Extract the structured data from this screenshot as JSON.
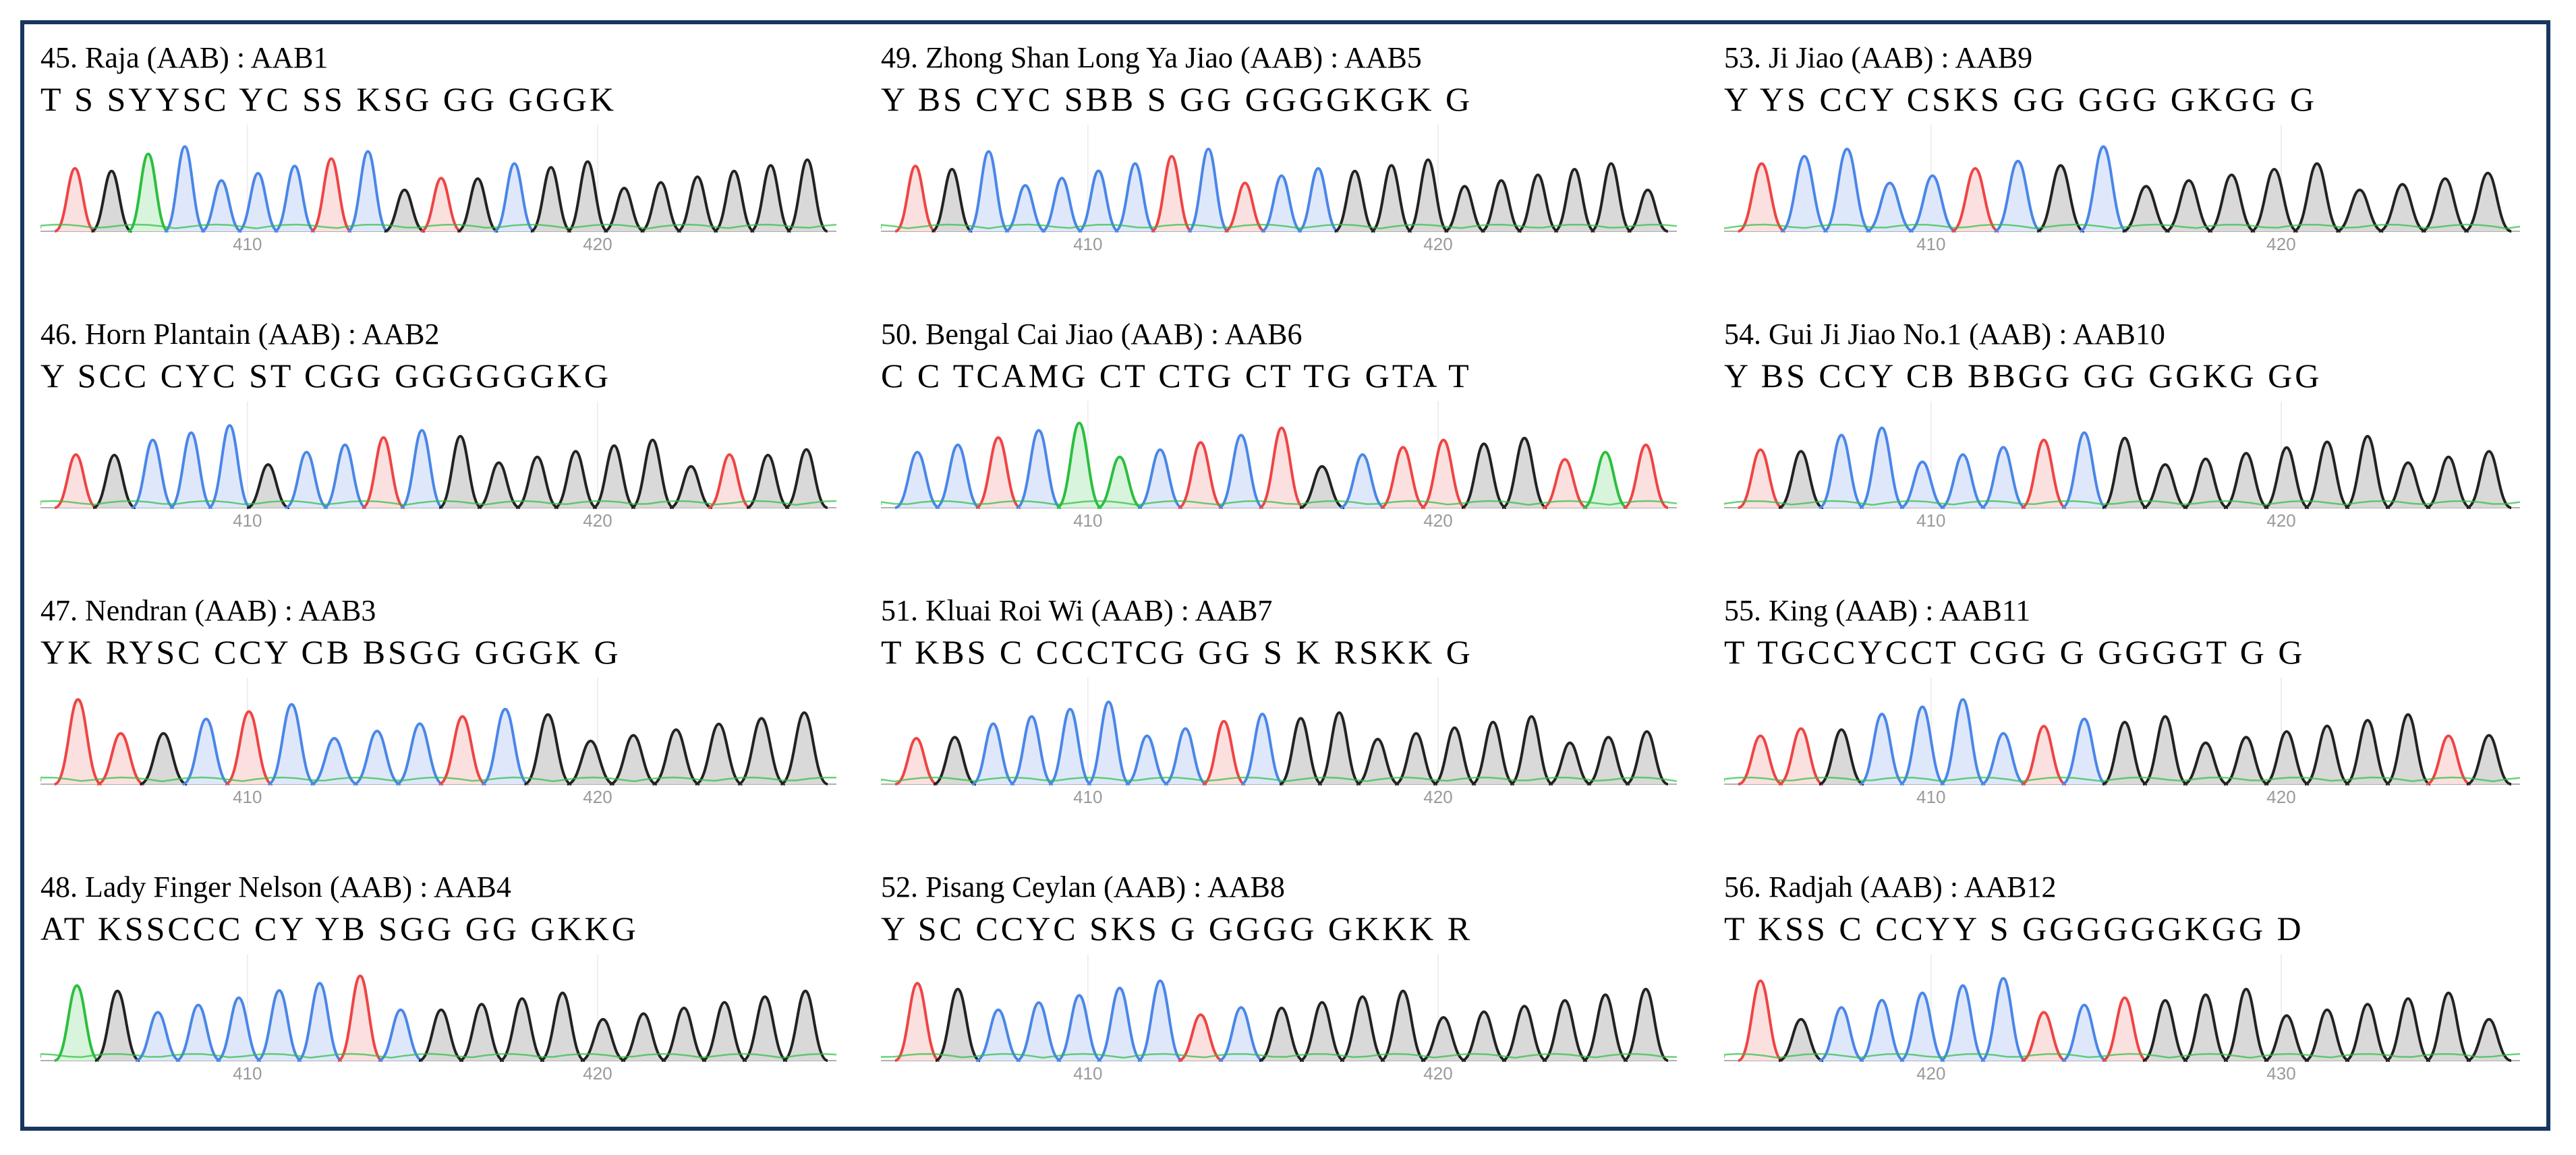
{
  "colors": {
    "A": "#2bbf3f",
    "C": "#4a86e8",
    "G": "#222222",
    "T": "#ef4444",
    "frame": "#17375e",
    "fill_C": "#dfe8fb",
    "fill_G": "#d9d9d9",
    "fill_T": "#fbe0e0",
    "fill_A": "#d8f4dc"
  },
  "panels": [
    {
      "id": 45,
      "title": "45. Raja (AAB) : AAB1",
      "sequence": "T S SYYSC YC SS KSG GG GGGK",
      "ticks": [
        "410",
        "420"
      ],
      "peaks": "TGACCCCTCGTGCGGGGGGGG"
    },
    {
      "id": 46,
      "title": "46. Horn Plantain (AAB) : AAB2",
      "sequence": "Y SCC CYC ST CGG GGGGGGKG",
      "ticks": [
        "410",
        "420"
      ],
      "peaks": "TGCCCGCCTCGGGGGGGTGG"
    },
    {
      "id": 47,
      "title": "47. Nendran (AAB) : AAB3",
      "sequence": "YK RYSC CCY CB BSGG GGGK G",
      "ticks": [
        "410",
        "420"
      ],
      "peaks": "TTGCTCCCCTCGGGGGGG"
    },
    {
      "id": 48,
      "title": "48. Lady Finger Nelson (AAB) : AAB4",
      "sequence": "AT KSSCCC CY YB SGG GG GKKG",
      "ticks": [
        "410",
        "420"
      ],
      "peaks": "AGCCCCCTCGGGGGGGGGG"
    },
    {
      "id": 49,
      "title": "49. Zhong Shan Long Ya Jiao (AAB) : AAB5",
      "sequence": "Y BS CYC SBB S GG GGGGKGK G",
      "ticks": [
        "410",
        "420"
      ],
      "peaks": "TGCCCCCTCTCCGGGGGGGGG"
    },
    {
      "id": 50,
      "title": "50. Bengal Cai Jiao (AAB) : AAB6",
      "sequence": "C C TCAMG CT CTG CT TG GTA T",
      "ticks": [
        "410",
        "420"
      ],
      "peaks": "CCTCAACTCTGCTTGGTAT"
    },
    {
      "id": 51,
      "title": "51. Kluai Roi Wi (AAB) : AAB7",
      "sequence": "T KBS C CCCTCG GG S K RSKK G",
      "ticks": [
        "410",
        "420"
      ],
      "peaks": "TGCCCCCCTCGGGGGGGGGG"
    },
    {
      "id": 52,
      "title": "52. Pisang Ceylan (AAB) : AAB8",
      "sequence": "Y SC CCYC SKS G GGGG GKKK R",
      "ticks": [
        "410",
        "420"
      ],
      "peaks": "TGCCCCCTCGGGGGGGGGG"
    },
    {
      "id": 53,
      "title": "53. Ji Jiao (AAB) : AAB9",
      "sequence": "Y YS CCY CSKS GG GGG GKGG G",
      "ticks": [
        "410",
        "420"
      ],
      "peaks": "TCCCCTCGCGGGGGGGGG"
    },
    {
      "id": 54,
      "title": "54. Gui Ji Jiao No.1 (AAB) : AAB10",
      "sequence": "Y BS CCY CB BBGG GG GGKG GG",
      "ticks": [
        "410",
        "420"
      ],
      "peaks": "TGCCCCCTCGGGGGGGGGG"
    },
    {
      "id": 55,
      "title": "55. King (AAB) : AAB11",
      "sequence": "T TGCCYCCT CGG G GGGGT G G",
      "ticks": [
        "410",
        "420"
      ],
      "peaks": "TTGCCCCTCGGGGGGGGTG"
    },
    {
      "id": 56,
      "title": "56. Radjah (AAB) : AAB12",
      "sequence": "T KSS C CCYY S GGGGGGKGG D",
      "ticks": [
        "420",
        "430"
      ],
      "peaks": "TGCCCCCTCTGGGGGGGGG"
    }
  ]
}
